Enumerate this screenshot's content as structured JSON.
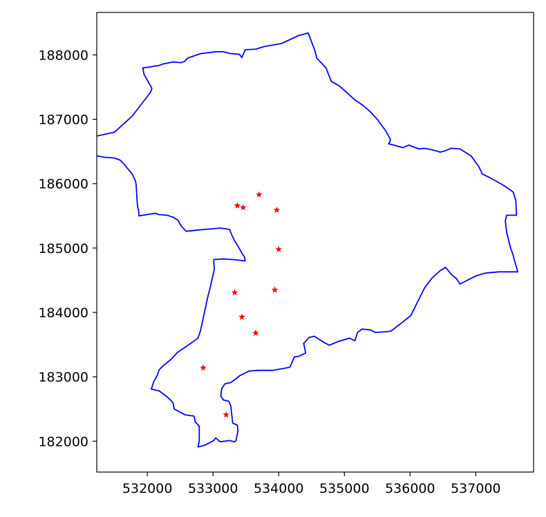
{
  "chart_data": {
    "type": "scatter",
    "title": "",
    "xlabel": "",
    "ylabel": "",
    "xlim": [
      531230,
      537880
    ],
    "ylim": [
      181520,
      188660
    ],
    "grid": false,
    "legend": "none",
    "x_ticks": [
      532000,
      533000,
      534000,
      535000,
      536000,
      537000
    ],
    "x_tick_labels": [
      "532000",
      "533000",
      "534000",
      "535000",
      "536000",
      "537000"
    ],
    "y_ticks": [
      182000,
      183000,
      184000,
      185000,
      186000,
      187000,
      188000
    ],
    "y_tick_labels": [
      "182000",
      "183000",
      "184000",
      "185000",
      "186000",
      "187000",
      "188000"
    ],
    "boundary": {
      "color": "#0000ff",
      "points": [
        [
          531500,
          186800
        ],
        [
          531770,
          187050
        ],
        [
          532050,
          187420
        ],
        [
          532070,
          187480
        ],
        [
          531950,
          187700
        ],
        [
          531930,
          187800
        ],
        [
          532030,
          187810
        ],
        [
          532120,
          187830
        ],
        [
          532160,
          187830
        ],
        [
          532240,
          187860
        ],
        [
          532390,
          187890
        ],
        [
          532510,
          187880
        ],
        [
          532570,
          187900
        ],
        [
          532610,
          187950
        ],
        [
          532810,
          188020
        ],
        [
          533040,
          188050
        ],
        [
          533150,
          188050
        ],
        [
          533270,
          188020
        ],
        [
          533400,
          188010
        ],
        [
          533440,
          187960
        ],
        [
          533490,
          188080
        ],
        [
          533650,
          188090
        ],
        [
          533780,
          188130
        ],
        [
          534050,
          188180
        ],
        [
          534300,
          188300
        ],
        [
          534450,
          188340
        ],
        [
          534550,
          188070
        ],
        [
          534580,
          187950
        ],
        [
          534720,
          187800
        ],
        [
          534800,
          187590
        ],
        [
          534920,
          187520
        ],
        [
          535000,
          187450
        ],
        [
          535150,
          187310
        ],
        [
          535290,
          187210
        ],
        [
          535390,
          187120
        ],
        [
          535500,
          187000
        ],
        [
          535630,
          186820
        ],
        [
          535700,
          186690
        ],
        [
          535690,
          186640
        ],
        [
          535670,
          186620
        ],
        [
          535750,
          186600
        ],
        [
          535890,
          186560
        ],
        [
          535980,
          186600
        ],
        [
          536080,
          186560
        ],
        [
          536140,
          186540
        ],
        [
          536220,
          186550
        ],
        [
          536360,
          186520
        ],
        [
          536460,
          186490
        ],
        [
          536530,
          186510
        ],
        [
          536630,
          186550
        ],
        [
          536760,
          186540
        ],
        [
          536930,
          186430
        ],
        [
          537050,
          186260
        ],
        [
          537100,
          186150
        ],
        [
          537200,
          186100
        ],
        [
          537430,
          185970
        ],
        [
          537570,
          185870
        ],
        [
          537610,
          185740
        ],
        [
          537620,
          185510
        ],
        [
          537470,
          185510
        ],
        [
          537450,
          185420
        ],
        [
          537470,
          185250
        ],
        [
          537530,
          185000
        ],
        [
          537560,
          184920
        ],
        [
          537600,
          184770
        ],
        [
          537640,
          184630
        ],
        [
          537350,
          184630
        ],
        [
          537140,
          184610
        ],
        [
          537010,
          184570
        ],
        [
          536910,
          184520
        ],
        [
          536760,
          184440
        ],
        [
          536710,
          184520
        ],
        [
          536630,
          184590
        ],
        [
          536540,
          184700
        ],
        [
          536460,
          184650
        ],
        [
          536330,
          184530
        ],
        [
          536220,
          184380
        ],
        [
          536010,
          183950
        ],
        [
          535850,
          183820
        ],
        [
          535810,
          183790
        ],
        [
          535710,
          183710
        ],
        [
          535640,
          183700
        ],
        [
          535470,
          183690
        ],
        [
          535390,
          183730
        ],
        [
          535270,
          183740
        ],
        [
          535200,
          183690
        ],
        [
          535160,
          183560
        ],
        [
          535080,
          183600
        ],
        [
          534910,
          183550
        ],
        [
          534770,
          183490
        ],
        [
          534680,
          183540
        ],
        [
          534540,
          183630
        ],
        [
          534460,
          183610
        ],
        [
          534410,
          183550
        ],
        [
          534380,
          183520
        ],
        [
          534410,
          183370
        ],
        [
          534310,
          183320
        ],
        [
          534240,
          183310
        ],
        [
          534170,
          183150
        ],
        [
          534080,
          183130
        ],
        [
          533910,
          183100
        ],
        [
          533700,
          183100
        ],
        [
          533550,
          183090
        ],
        [
          533410,
          183020
        ],
        [
          533350,
          182970
        ],
        [
          533270,
          182910
        ],
        [
          533180,
          182890
        ],
        [
          533130,
          182810
        ],
        [
          533120,
          182700
        ],
        [
          533160,
          182640
        ],
        [
          533240,
          182620
        ],
        [
          533270,
          182550
        ],
        [
          533300,
          182280
        ],
        [
          533370,
          182250
        ],
        [
          533380,
          182160
        ],
        [
          533350,
          182010
        ],
        [
          533330,
          181990
        ],
        [
          533250,
          182010
        ],
        [
          533110,
          181990
        ],
        [
          533040,
          182050
        ],
        [
          533010,
          182010
        ],
        [
          532880,
          181940
        ],
        [
          532770,
          181910
        ],
        [
          532790,
          182000
        ],
        [
          532790,
          182230
        ],
        [
          532730,
          182300
        ],
        [
          532710,
          182390
        ],
        [
          532570,
          182410
        ],
        [
          532410,
          182500
        ],
        [
          532390,
          182600
        ],
        [
          532300,
          182690
        ],
        [
          532180,
          182780
        ],
        [
          532060,
          182810
        ],
        [
          532100,
          182930
        ],
        [
          532150,
          183020
        ],
        [
          532180,
          183110
        ],
        [
          532250,
          183180
        ],
        [
          532350,
          183260
        ],
        [
          532460,
          183380
        ],
        [
          532660,
          183520
        ],
        [
          532770,
          183600
        ],
        [
          532810,
          183720
        ],
        [
          532880,
          184050
        ],
        [
          532910,
          184200
        ],
        [
          532960,
          184400
        ],
        [
          533000,
          184580
        ],
        [
          533020,
          184670
        ],
        [
          533010,
          184820
        ],
        [
          533150,
          184830
        ],
        [
          533320,
          184820
        ],
        [
          533490,
          184800
        ],
        [
          533480,
          184860
        ],
        [
          533440,
          184920
        ],
        [
          533380,
          185030
        ],
        [
          533320,
          185130
        ],
        [
          533270,
          185240
        ],
        [
          533250,
          185290
        ],
        [
          533110,
          185310
        ],
        [
          532880,
          185290
        ],
        [
          532770,
          185280
        ],
        [
          532590,
          185260
        ],
        [
          532510,
          185350
        ],
        [
          532470,
          185430
        ],
        [
          532390,
          185480
        ],
        [
          532300,
          185510
        ],
        [
          532180,
          185520
        ],
        [
          532120,
          185540
        ],
        [
          531870,
          185500
        ],
        [
          531870,
          185560
        ],
        [
          531850,
          185660
        ],
        [
          531840,
          185800
        ],
        [
          531830,
          185980
        ],
        [
          531820,
          186040
        ],
        [
          531770,
          186150
        ],
        [
          531640,
          186310
        ],
        [
          531580,
          186370
        ],
        [
          531490,
          186400
        ],
        [
          531350,
          186410
        ],
        [
          531200,
          186440
        ],
        [
          531050,
          186380
        ],
        [
          530930,
          186370
        ],
        [
          530800,
          186490
        ],
        [
          530700,
          186620
        ],
        [
          531500,
          186800
        ]
      ]
    },
    "points": {
      "color": "#ff0000",
      "marker": "star",
      "x": [
        533370,
        533460,
        533700,
        533970,
        534000,
        533330,
        533440,
        533940,
        533650,
        532850,
        533200
      ],
      "y": [
        185660,
        185630,
        185830,
        185590,
        184980,
        184310,
        183930,
        184350,
        183680,
        183140,
        182410
      ]
    }
  }
}
